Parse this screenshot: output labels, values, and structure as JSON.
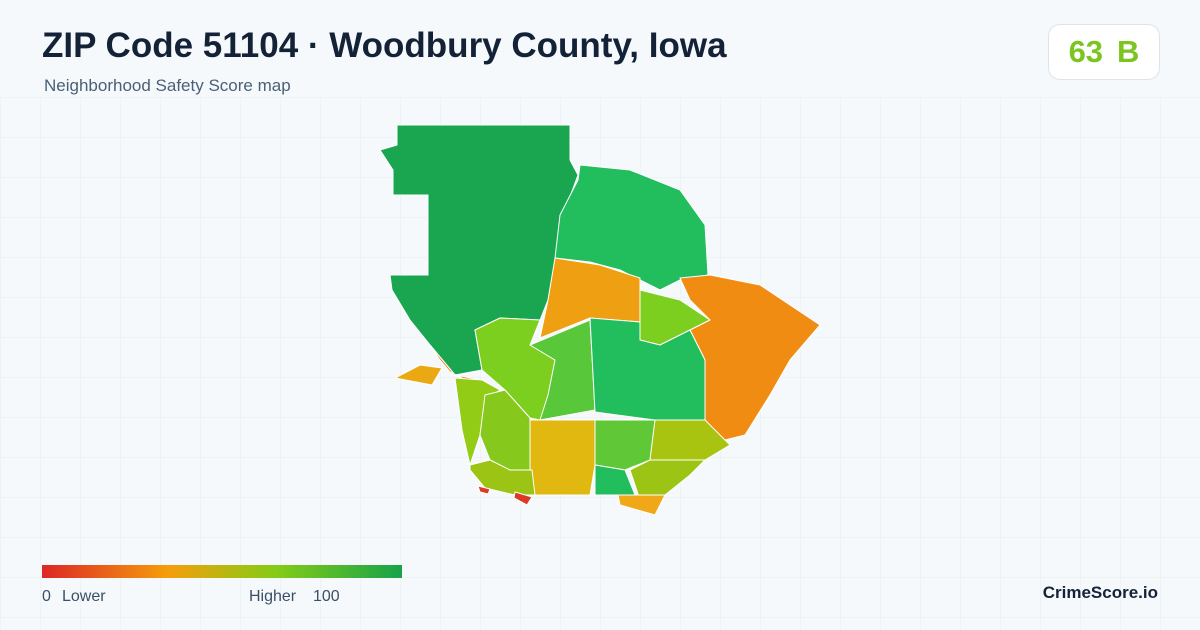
{
  "header": {
    "title": "ZIP Code 51104 · Woodbury County, Iowa",
    "subtitle": "Neighborhood Safety Score map"
  },
  "score": {
    "value": 63,
    "grade": "B"
  },
  "legend": {
    "min": 0,
    "min_label": "Lower",
    "max_label": "Higher",
    "max": 100
  },
  "brand": "CrimeScore.io"
}
